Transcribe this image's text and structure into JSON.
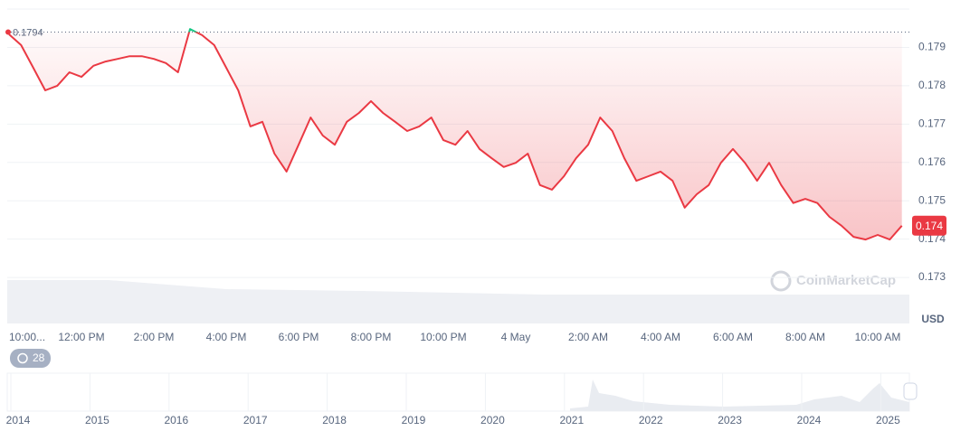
{
  "chart_data": {
    "type": "line",
    "categories": [
      "10:00...",
      null,
      null,
      null,
      null,
      null,
      "12:00 PM",
      null,
      null,
      null,
      null,
      null,
      "2:00 PM",
      null,
      null,
      null,
      null,
      null,
      "4:00 PM",
      null,
      null,
      null,
      null,
      null,
      "6:00 PM",
      null,
      null,
      null,
      null,
      null,
      "8:00 PM",
      null,
      null,
      null,
      null,
      null,
      "10:00 PM",
      null,
      null,
      null,
      null,
      null,
      "4 May",
      null,
      null,
      null,
      null,
      null,
      "2:00 AM",
      null,
      null,
      null,
      null,
      null,
      "4:00 AM",
      null,
      null,
      null,
      null,
      null,
      "6:00 AM",
      null,
      null,
      null,
      null,
      null,
      "8:00 AM",
      null,
      null,
      null,
      null,
      null,
      "10:00 AM",
      null,
      null
    ],
    "values": [
      0.17934,
      0.17906,
      0.17847,
      0.17788,
      0.178,
      0.17835,
      0.17823,
      0.17852,
      0.17863,
      0.1787,
      0.17877,
      0.17877,
      0.1787,
      0.17859,
      0.17835,
      0.17948,
      0.17932,
      0.17906,
      0.17847,
      0.17788,
      0.17694,
      0.17706,
      0.17623,
      0.17576,
      0.17646,
      0.17717,
      0.1767,
      0.17646,
      0.17706,
      0.17729,
      0.1776,
      0.17729,
      0.17706,
      0.17682,
      0.17694,
      0.17717,
      0.17658,
      0.17646,
      0.17682,
      0.17635,
      0.17611,
      0.17588,
      0.17599,
      0.17623,
      0.17541,
      0.17529,
      0.17564,
      0.17611,
      0.17646,
      0.17717,
      0.17682,
      0.17611,
      0.17552,
      0.17564,
      0.17576,
      0.17552,
      0.17482,
      0.17517,
      0.17541,
      0.17599,
      0.17635,
      0.17599,
      0.17552,
      0.17599,
      0.17541,
      0.17494,
      0.17505,
      0.17494,
      0.17458,
      0.17435,
      0.17406,
      0.17399,
      0.17411,
      0.17399,
      0.17435
    ],
    "color": "#ea3943",
    "up_color": "#16c784",
    "reference": 0.1794,
    "reference_label": "0.1794",
    "current_price_label": "0.174",
    "ylim": [
      0.1718,
      0.18
    ],
    "yticks": [
      0.173,
      0.174,
      0.175,
      0.176,
      0.177,
      0.178,
      0.179
    ],
    "grid": true,
    "y_axis_label": "USD",
    "watermark": "CoinMarketCap",
    "badge": "28",
    "navigator_years": [
      "2014",
      "2015",
      "2016",
      "2017",
      "2018",
      "2019",
      "2020",
      "2021",
      "2022",
      "2023",
      "2024",
      "2025"
    ]
  }
}
